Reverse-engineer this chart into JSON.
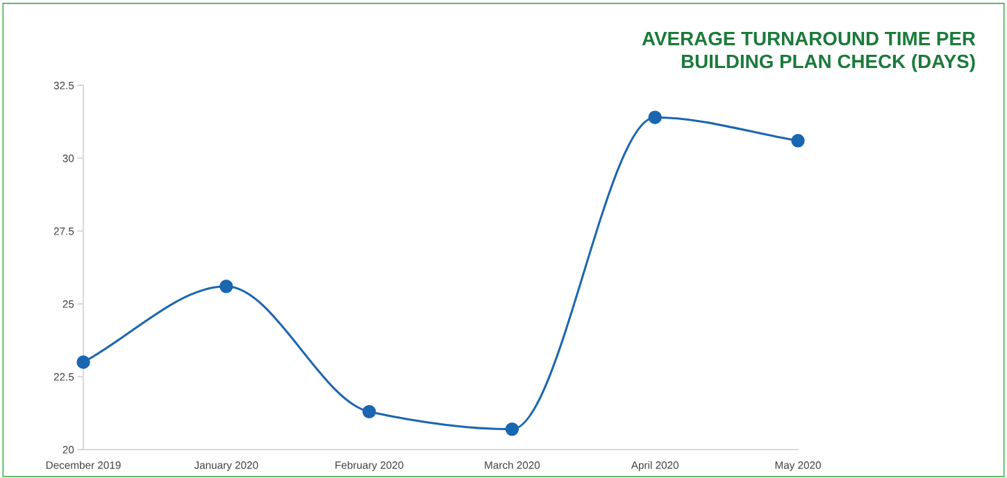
{
  "chart_data": {
    "type": "line",
    "title": "AVERAGE TURNAROUND TIME PER\nBUILDING PLAN CHECK (DAYS)",
    "categories": [
      "December 2019",
      "January 2020",
      "February 2020",
      "March 2020",
      "April 2020",
      "May 2020"
    ],
    "series": [
      {
        "color": "#1b66b0",
        "values": [
          23.0,
          25.6,
          21.3,
          20.7,
          31.4,
          30.6
        ]
      }
    ],
    "ylim": [
      20,
      32.5
    ],
    "yticks": [
      20,
      22.5,
      25,
      27.5,
      30,
      32.5
    ],
    "grid": false,
    "legend": false,
    "marker": "circle",
    "line_style": "solid"
  }
}
